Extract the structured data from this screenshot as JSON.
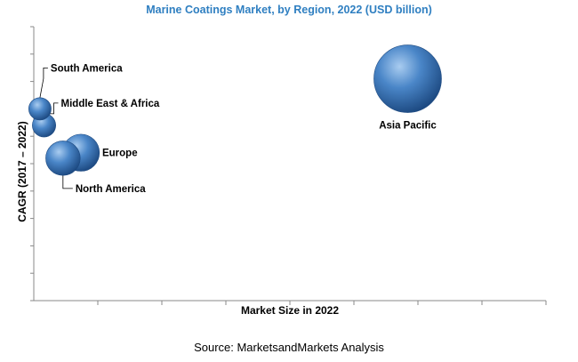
{
  "chart_data": {
    "type": "scatter",
    "title": "Marine Coatings Market, by Region, 2022 (USD billion)",
    "xlabel": "Market Size in 2022",
    "ylabel": "CAGR (2017 – 2022)",
    "grid": false,
    "legend": "none",
    "source": "Source: MarketsandMarkets Analysis",
    "bubble_color": "#4a86c8",
    "points": [
      {
        "label": "Asia Pacific",
        "x": 0.73,
        "y": 0.81,
        "size": 1.0
      },
      {
        "label": "South America",
        "x": 0.012,
        "y": 0.7,
        "size": 0.11
      },
      {
        "label": "Middle East & Africa",
        "x": 0.02,
        "y": 0.64,
        "size": 0.12
      },
      {
        "label": "Europe",
        "x": 0.092,
        "y": 0.54,
        "size": 0.3
      },
      {
        "label": "North America",
        "x": 0.057,
        "y": 0.52,
        "size": 0.26
      }
    ]
  }
}
